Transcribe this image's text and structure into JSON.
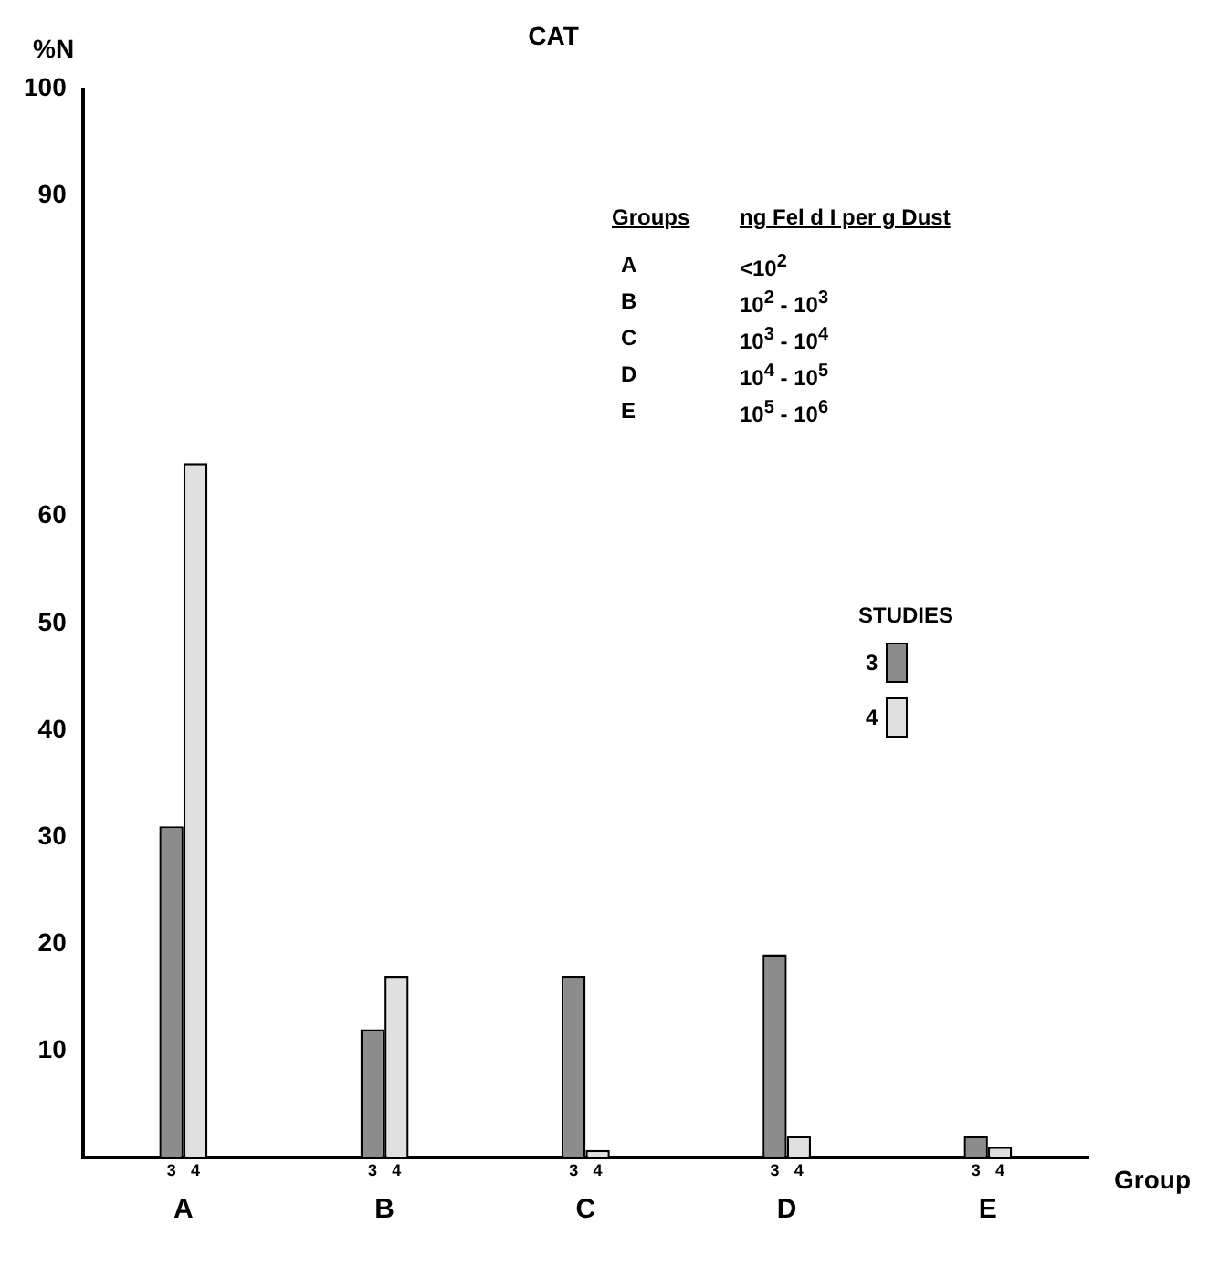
{
  "chart_data": {
    "type": "bar",
    "title": "CAT",
    "xlabel": "Group",
    "ylabel": "%N",
    "categories": [
      "A",
      "B",
      "C",
      "D",
      "E"
    ],
    "series": [
      {
        "name": "3",
        "color": "#8c8c8c",
        "values": [
          31,
          12,
          17,
          19,
          2
        ]
      },
      {
        "name": "4",
        "color": "#e0e0e0",
        "values": [
          65,
          17,
          0.7,
          2,
          1
        ]
      }
    ],
    "ylim": [
      0,
      100
    ],
    "yticks": [
      10,
      20,
      30,
      40,
      50,
      60,
      90,
      100
    ],
    "legend": "right",
    "legend_title": "STUDIES",
    "grid": false,
    "annotations": [
      "Groups",
      "ng Fel d I per g Dust",
      "A",
      "<10$^{2}$",
      "B",
      "10$^{2}$ - 10$^{3}$",
      "C",
      "10$^{3}$ - 10$^{4}$",
      "D",
      "10$^{4}$ - 10$^{5}$",
      "E",
      "10$^{5}$ - 10$^{6}$"
    ]
  }
}
